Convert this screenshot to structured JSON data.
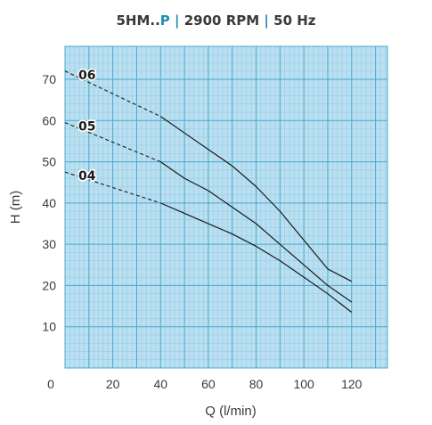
{
  "title": {
    "model": "5HM..",
    "model_suffix": "P",
    "separator": "|",
    "speed": "2900 RPM",
    "frequency": "50 Hz"
  },
  "colors": {
    "grid_background": "#b9dff0",
    "grid_minor": "#8ecbe4",
    "grid_major": "#4aa7cf",
    "curve": "#1a1a1a",
    "accent": "#1e8fb0"
  },
  "chart_data": {
    "type": "line",
    "title": "5HM..P | 2900 RPM | 50 Hz",
    "xlabel": "Q (l/min)",
    "ylabel": "H (m)",
    "xlim": [
      0,
      135
    ],
    "ylim": [
      0,
      78
    ],
    "x_ticks": [
      0,
      20,
      40,
      60,
      80,
      100,
      120
    ],
    "y_ticks": [
      10,
      20,
      30,
      40,
      50,
      60,
      70
    ],
    "grid": true,
    "series": [
      {
        "name": "06",
        "dashed_x": [
          0,
          40
        ],
        "dashed_y": [
          72,
          61
        ],
        "solid_x": [
          40,
          50,
          60,
          70,
          80,
          90,
          100,
          110,
          120
        ],
        "solid_y": [
          61,
          57,
          53,
          49,
          44,
          38,
          31,
          24,
          21
        ]
      },
      {
        "name": "05",
        "dashed_x": [
          0,
          40
        ],
        "dashed_y": [
          59.5,
          50
        ],
        "solid_x": [
          40,
          50,
          60,
          70,
          80,
          90,
          100,
          110,
          120
        ],
        "solid_y": [
          50,
          46,
          43,
          39,
          35,
          30,
          25,
          20,
          16
        ]
      },
      {
        "name": "04",
        "dashed_x": [
          0,
          40
        ],
        "dashed_y": [
          47.5,
          40
        ],
        "solid_x": [
          40,
          50,
          60,
          70,
          80,
          90,
          100,
          110,
          120
        ],
        "solid_y": [
          40,
          37.5,
          35,
          32.5,
          29.5,
          26,
          22,
          18,
          13.5
        ]
      }
    ]
  }
}
